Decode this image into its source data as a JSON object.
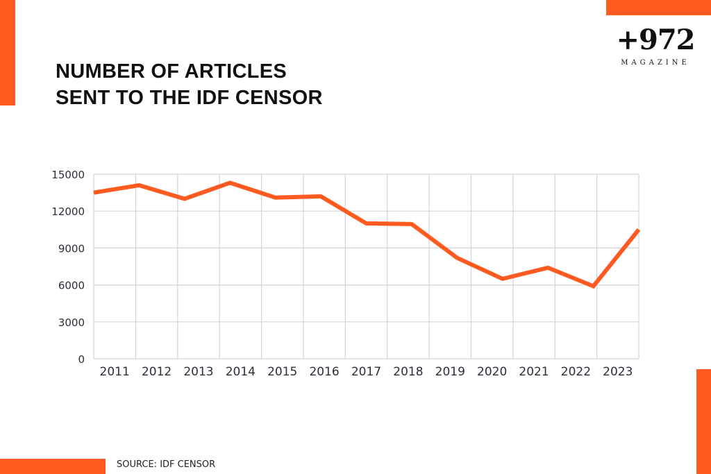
{
  "title_lines": [
    "NUMBER OF ARTICLES",
    "SENT TO THE IDF CENSOR"
  ],
  "logo": {
    "number": "+972",
    "word": "MAGAZINE"
  },
  "source": "SOURCE: IDF CENSOR",
  "colors": {
    "accent": "#FF5A1F",
    "grid": "#d0d4dc",
    "text": "#2b2f3a"
  },
  "chart_data": {
    "type": "line",
    "title": "NUMBER OF ARTICLES SENT TO THE IDF CENSOR",
    "categories": [
      "2011",
      "2012",
      "2013",
      "2014",
      "2015",
      "2016",
      "2017",
      "2018",
      "2019",
      "2020",
      "2021",
      "2022",
      "2023"
    ],
    "series": [
      {
        "values": [
          13500,
          14100,
          13000,
          14300,
          13100,
          13200,
          11000,
          10950,
          8200,
          6500,
          7400,
          5900,
          10500
        ]
      }
    ],
    "yticks": [
      "0",
      "3000",
      "6000",
      "9000",
      "12000",
      "15000"
    ],
    "ylim": [
      0,
      15000
    ],
    "grid": true,
    "legend": "none"
  }
}
